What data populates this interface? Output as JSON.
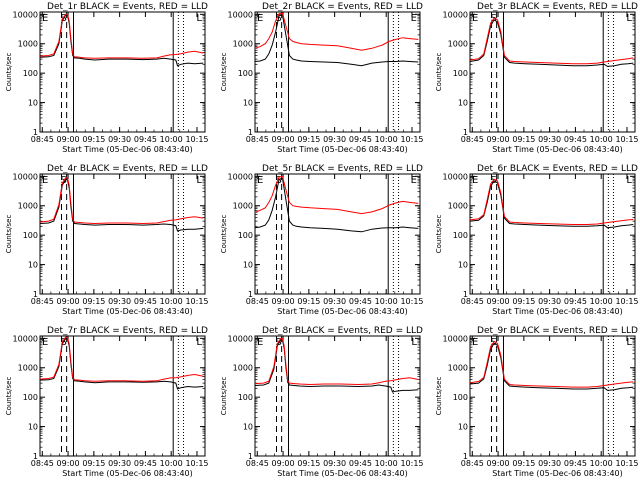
{
  "chart_data": {
    "type": "line",
    "shared": {
      "ylabel": "Counts/sec",
      "xlabel": "Start Time (05-Dec-06 08:43:40)",
      "x_ticks": [
        "08:45",
        "09:00",
        "09:15",
        "09:30",
        "09:45",
        "10:00",
        "10:15"
      ],
      "y_ticks": [
        "1",
        "10",
        "100",
        "1000",
        "10000"
      ],
      "y_scale": "log",
      "ylim": [
        1,
        12000
      ],
      "xlim_minutes": [
        0,
        96
      ],
      "x_tick_minutes": [
        1.33,
        16.33,
        31.33,
        46.33,
        61.33,
        76.33,
        91.33
      ],
      "dashed_lines_minutes": [
        12.5,
        15.5
      ],
      "solid_lines_minutes": [
        19.5,
        77.5
      ],
      "dotted_lines_minutes": [
        80.5,
        83.5
      ],
      "color_events": "#000000",
      "color_lld": "#ff0000"
    },
    "panels": [
      {
        "title": "Det_1r BLACK = Events, RED = LLD",
        "markers": {
          "left": "E",
          "peak": "S",
          "right": "L"
        },
        "x": [
          0,
          5,
          8,
          11,
          13,
          15,
          16,
          17,
          18,
          19,
          20,
          23,
          26,
          32,
          40,
          50,
          60,
          68,
          72,
          76,
          79,
          80,
          82,
          86,
          90,
          95
        ],
        "series": [
          {
            "name": "Events",
            "values": [
              350,
              360,
              400,
              1000,
              6000,
              9500,
              9000,
              5000,
              1200,
              400,
              330,
              320,
              300,
              280,
              300,
              300,
              290,
              300,
              320,
              300,
              280,
              180,
              200,
              220,
              210,
              220
            ]
          },
          {
            "name": "LLD",
            "values": [
              380,
              400,
              450,
              1200,
              7000,
              10000,
              9800,
              6000,
              1500,
              450,
              360,
              350,
              330,
              320,
              330,
              330,
              320,
              330,
              380,
              420,
              430,
              440,
              460,
              520,
              560,
              480
            ]
          }
        ]
      },
      {
        "title": "Det_2r BLACK = Events, RED = LLD",
        "markers": {
          "left": "E",
          "peak": "S",
          "right": "E"
        },
        "x": [
          0,
          3,
          6,
          8,
          10,
          12,
          14,
          16,
          18,
          20,
          22,
          24,
          27,
          32,
          40,
          48,
          56,
          62,
          68,
          74,
          78,
          82,
          86,
          90,
          95
        ],
        "series": [
          {
            "name": "Events",
            "values": [
              250,
              260,
              300,
              450,
              900,
              2500,
              9000,
              9500,
              2000,
              400,
              300,
              280,
              260,
              250,
              240,
              230,
              200,
              180,
              220,
              240,
              250,
              250,
              260,
              250,
              240
            ]
          },
          {
            "name": "LLD",
            "values": [
              700,
              800,
              1000,
              1500,
              2500,
              6000,
              10500,
              11000,
              4000,
              1500,
              1200,
              1100,
              1000,
              950,
              900,
              850,
              700,
              600,
              700,
              900,
              1200,
              1400,
              1600,
              1500,
              1400
            ]
          }
        ]
      },
      {
        "title": "Det_3r BLACK = Events, RED = LLD",
        "markers": {
          "left": "E",
          "peak": "S",
          "right": "L"
        },
        "x": [
          0,
          5,
          8,
          10,
          12,
          14,
          16,
          18,
          20,
          23,
          26,
          32,
          40,
          50,
          60,
          68,
          74,
          78,
          80,
          84,
          88,
          92,
          95
        ],
        "series": [
          {
            "name": "Events",
            "values": [
              250,
              280,
              400,
              1200,
              4000,
              6500,
              5500,
              2000,
              350,
              230,
              220,
              210,
              200,
              190,
              180,
              180,
              190,
              200,
              170,
              180,
              200,
              210,
              220
            ]
          },
          {
            "name": "LLD",
            "values": [
              280,
              310,
              450,
              1500,
              5000,
              7500,
              6500,
              2500,
              400,
              260,
              250,
              240,
              230,
              220,
              210,
              210,
              220,
              240,
              250,
              270,
              290,
              310,
              330
            ]
          }
        ]
      },
      {
        "title": "Det_4r BLACK = Events, RED = LLD",
        "markers": {
          "left": "E",
          "peak": "S",
          "right": "L"
        },
        "x": [
          0,
          5,
          8,
          11,
          13,
          15,
          16,
          17,
          18,
          19,
          20,
          23,
          26,
          32,
          40,
          50,
          60,
          68,
          72,
          76,
          79,
          80,
          82,
          86,
          90,
          95
        ],
        "series": [
          {
            "name": "Events",
            "values": [
              250,
              260,
              300,
              900,
              5000,
              8000,
              7500,
              4000,
              900,
              300,
              250,
              240,
              230,
              220,
              230,
              230,
              220,
              230,
              240,
              230,
              210,
              140,
              150,
              160,
              160,
              170
            ]
          },
          {
            "name": "LLD",
            "values": [
              280,
              300,
              350,
              1100,
              6000,
              9000,
              8800,
              5000,
              1200,
              350,
              280,
              270,
              260,
              250,
              260,
              260,
              250,
              260,
              290,
              320,
              330,
              340,
              360,
              400,
              420,
              380
            ]
          }
        ]
      },
      {
        "title": "Det_5r BLACK = Events, RED = LLD",
        "markers": {
          "left": "E",
          "peak": "S",
          "right": "E"
        },
        "x": [
          0,
          3,
          6,
          8,
          10,
          12,
          14,
          16,
          18,
          20,
          22,
          24,
          27,
          32,
          40,
          48,
          56,
          62,
          68,
          74,
          78,
          82,
          86,
          90,
          95
        ],
        "series": [
          {
            "name": "Events",
            "values": [
              180,
              190,
              220,
              330,
              700,
              2000,
              8000,
              8500,
              1600,
              300,
              220,
              200,
              190,
              180,
              170,
              160,
              140,
              130,
              160,
              175,
              180,
              180,
              190,
              180,
              170
            ]
          },
          {
            "name": "LLD",
            "values": [
              600,
              700,
              850,
              1300,
              2200,
              5000,
              9500,
              10000,
              3500,
              1300,
              1000,
              950,
              900,
              850,
              800,
              750,
              620,
              540,
              620,
              800,
              1050,
              1250,
              1400,
              1300,
              1200
            ]
          }
        ]
      },
      {
        "title": "Det_6r BLACK = Events, RED = LLD",
        "markers": {
          "left": "E",
          "peak": "S",
          "right": "L"
        },
        "x": [
          0,
          5,
          8,
          10,
          12,
          14,
          16,
          18,
          20,
          23,
          26,
          32,
          40,
          50,
          60,
          68,
          74,
          78,
          80,
          84,
          88,
          92,
          95
        ],
        "series": [
          {
            "name": "Events",
            "values": [
              300,
              320,
              450,
              1300,
              4500,
              7000,
              6000,
              2200,
              380,
              250,
              240,
              230,
              220,
              210,
              200,
              200,
              210,
              220,
              180,
              190,
              210,
              220,
              230
            ]
          },
          {
            "name": "LLD",
            "values": [
              330,
              360,
              500,
              1600,
              5500,
              8000,
              7000,
              2700,
              430,
              280,
              270,
              260,
              250,
              240,
              230,
              230,
              240,
              260,
              270,
              290,
              310,
              330,
              340
            ]
          }
        ]
      },
      {
        "title": "Det_7r BLACK = Events, RED = LLD",
        "markers": {
          "left": "E",
          "peak": "S",
          "right": "L"
        },
        "x": [
          0,
          5,
          8,
          11,
          13,
          15,
          16,
          17,
          18,
          19,
          20,
          23,
          26,
          32,
          40,
          50,
          60,
          68,
          72,
          76,
          79,
          80,
          82,
          86,
          90,
          95
        ],
        "series": [
          {
            "name": "Events",
            "values": [
              380,
              390,
              430,
              1100,
              6500,
              10000,
              9500,
              5500,
              1300,
              430,
              360,
              350,
              330,
              310,
              330,
              330,
              320,
              330,
              350,
              330,
              300,
              190,
              210,
              230,
              220,
              230
            ]
          },
          {
            "name": "LLD",
            "values": [
              410,
              430,
              480,
              1300,
              7500,
              11000,
              10500,
              6500,
              1600,
              480,
              390,
              380,
              360,
              350,
              360,
              360,
              350,
              360,
              410,
              450,
              460,
              470,
              490,
              550,
              590,
              510
            ]
          }
        ]
      },
      {
        "title": "Det_8r BLACK = Events, RED = LLD",
        "markers": {
          "left": "E",
          "peak": "S",
          "right": "L"
        },
        "x": [
          0,
          5,
          8,
          11,
          13,
          15,
          16,
          17,
          18,
          19,
          20,
          23,
          26,
          32,
          40,
          50,
          60,
          68,
          72,
          76,
          79,
          80,
          82,
          86,
          90,
          95
        ],
        "series": [
          {
            "name": "Events",
            "values": [
              250,
              260,
              300,
              900,
              5500,
              9000,
              8500,
              4500,
              1000,
              320,
              260,
              250,
              240,
              230,
              240,
              240,
              230,
              240,
              260,
              240,
              220,
              150,
              160,
              170,
              170,
              180
            ]
          },
          {
            "name": "LLD",
            "values": [
              290,
              300,
              350,
              1100,
              6500,
              10000,
              9800,
              5500,
              1300,
              370,
              300,
              290,
              280,
              270,
              280,
              280,
              270,
              280,
              310,
              350,
              360,
              370,
              390,
              430,
              460,
              400
            ]
          }
        ]
      },
      {
        "title": "Det_9r BLACK = Events, RED = LLD",
        "markers": {
          "left": "E",
          "peak": "S",
          "right": "L"
        },
        "x": [
          0,
          5,
          8,
          10,
          12,
          14,
          16,
          18,
          20,
          23,
          26,
          32,
          40,
          50,
          60,
          68,
          74,
          78,
          80,
          84,
          88,
          92,
          95
        ],
        "series": [
          {
            "name": "Events",
            "values": [
              280,
              300,
              420,
              1200,
              4200,
              6800,
              5800,
              2100,
              360,
              240,
              230,
              220,
              210,
              200,
              190,
              190,
              200,
              210,
              170,
              180,
              200,
              210,
              220
            ]
          },
          {
            "name": "LLD",
            "values": [
              310,
              340,
              470,
              1500,
              5200,
              7800,
              6800,
              2600,
              410,
              270,
              260,
              250,
              240,
              230,
              220,
              220,
              230,
              250,
              260,
              280,
              300,
              320,
              330
            ]
          }
        ]
      }
    ]
  }
}
